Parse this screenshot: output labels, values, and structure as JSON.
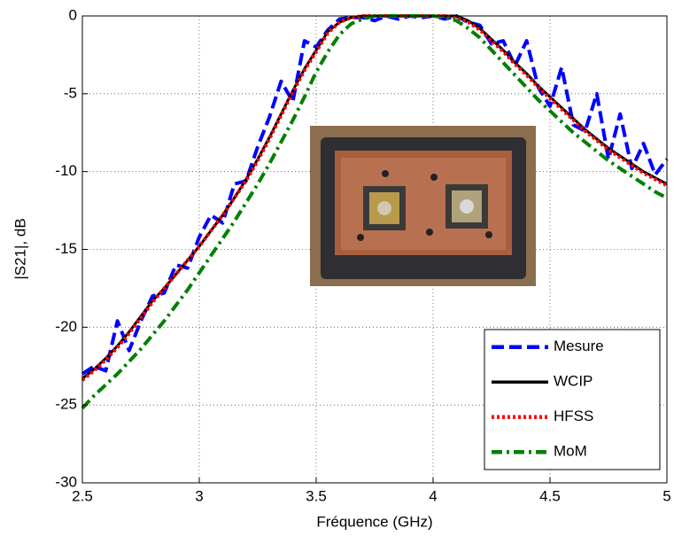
{
  "chart_data": {
    "type": "line",
    "xlabel": "Fréquence (GHz)",
    "ylabel": "|S21|, dB",
    "x": [
      2.5,
      2.55,
      2.6,
      2.65,
      2.7,
      2.75,
      2.8,
      2.85,
      2.9,
      2.95,
      3.0,
      3.05,
      3.1,
      3.15,
      3.2,
      3.25,
      3.3,
      3.35,
      3.4,
      3.45,
      3.5,
      3.55,
      3.6,
      3.65,
      3.7,
      3.75,
      3.8,
      3.85,
      3.9,
      3.95,
      4.0,
      4.05,
      4.1,
      4.15,
      4.2,
      4.25,
      4.3,
      4.35,
      4.4,
      4.45,
      4.5,
      4.55,
      4.6,
      4.65,
      4.7,
      4.75,
      4.8,
      4.85,
      4.9,
      4.95,
      5.0
    ],
    "series": [
      {
        "name": "Mesure",
        "color": "#0000ff",
        "style": "dashed",
        "values": [
          -23.0,
          -22.5,
          -22.8,
          -19.6,
          -21.5,
          -19.6,
          -18.0,
          -17.8,
          -16.0,
          -16.2,
          -14.2,
          -12.8,
          -13.3,
          -10.8,
          -10.6,
          -8.4,
          -6.5,
          -4.2,
          -5.5,
          -1.6,
          -2.0,
          -0.9,
          -0.2,
          -0.1,
          -0.1,
          -0.3,
          0,
          -0.2,
          0,
          -0.1,
          0,
          -0.2,
          0,
          -0.4,
          -0.6,
          -1.8,
          -1.6,
          -3.2,
          -1.6,
          -4.6,
          -5.8,
          -3.3,
          -7.0,
          -7.4,
          -5.0,
          -9.2,
          -6.3,
          -9.8,
          -8.2,
          -10.2,
          -9.2
        ]
      },
      {
        "name": "WCIP",
        "color": "#000000",
        "style": "solid",
        "values": [
          -23.3,
          -22.7,
          -22.0,
          -21.2,
          -20.3,
          -19.3,
          -18.3,
          -17.5,
          -16.6,
          -15.7,
          -14.8,
          -13.8,
          -12.8,
          -11.7,
          -10.5,
          -9.2,
          -7.8,
          -6.3,
          -4.8,
          -3.4,
          -2.2,
          -1.0,
          -0.4,
          -0.1,
          0,
          0,
          0,
          0,
          0,
          0,
          0,
          0,
          0,
          -0.3,
          -0.8,
          -1.5,
          -2.2,
          -3.0,
          -3.7,
          -4.5,
          -5.2,
          -5.9,
          -6.6,
          -7.3,
          -7.9,
          -8.5,
          -9.0,
          -9.5,
          -10.0,
          -10.4,
          -10.8
        ]
      },
      {
        "name": "HFSS",
        "color": "#ff0000",
        "style": "dotted",
        "values": [
          -23.4,
          -22.8,
          -22.1,
          -21.3,
          -20.4,
          -19.4,
          -18.4,
          -17.5,
          -16.6,
          -15.7,
          -14.8,
          -13.8,
          -12.8,
          -11.7,
          -10.6,
          -9.3,
          -7.9,
          -6.4,
          -4.9,
          -3.5,
          -2.3,
          -1.1,
          -0.4,
          -0.1,
          0,
          0,
          0,
          0,
          0,
          0,
          0,
          0,
          -0.1,
          -0.4,
          -0.9,
          -1.6,
          -2.3,
          -3.1,
          -3.8,
          -4.6,
          -5.3,
          -6.0,
          -6.7,
          -7.4,
          -8.0,
          -8.6,
          -9.1,
          -9.6,
          -10.1,
          -10.5,
          -10.9
        ]
      },
      {
        "name": "MoM",
        "color": "#008000",
        "style": "dashdot",
        "values": [
          -25.2,
          -24.4,
          -23.7,
          -23.0,
          -22.2,
          -21.4,
          -20.5,
          -19.6,
          -18.6,
          -17.6,
          -16.5,
          -15.4,
          -14.3,
          -13.2,
          -12.0,
          -10.8,
          -9.5,
          -8.1,
          -6.7,
          -5.2,
          -3.6,
          -2.3,
          -1.2,
          -0.5,
          -0.2,
          0,
          0,
          0,
          0,
          0,
          0,
          -0.1,
          -0.3,
          -0.8,
          -1.4,
          -2.2,
          -3.0,
          -3.8,
          -4.6,
          -5.4,
          -6.1,
          -6.8,
          -7.5,
          -8.1,
          -8.7,
          -9.3,
          -9.8,
          -10.3,
          -10.8,
          -11.3,
          -11.7
        ]
      }
    ],
    "xlim": [
      2.5,
      5
    ],
    "ylim": [
      -30,
      0
    ],
    "xticks": [
      2.5,
      3,
      3.5,
      4,
      4.5,
      5
    ],
    "yticks": [
      -30,
      -25,
      -20,
      -15,
      -10,
      -5,
      0
    ],
    "grid": true,
    "legend": "lower right"
  }
}
